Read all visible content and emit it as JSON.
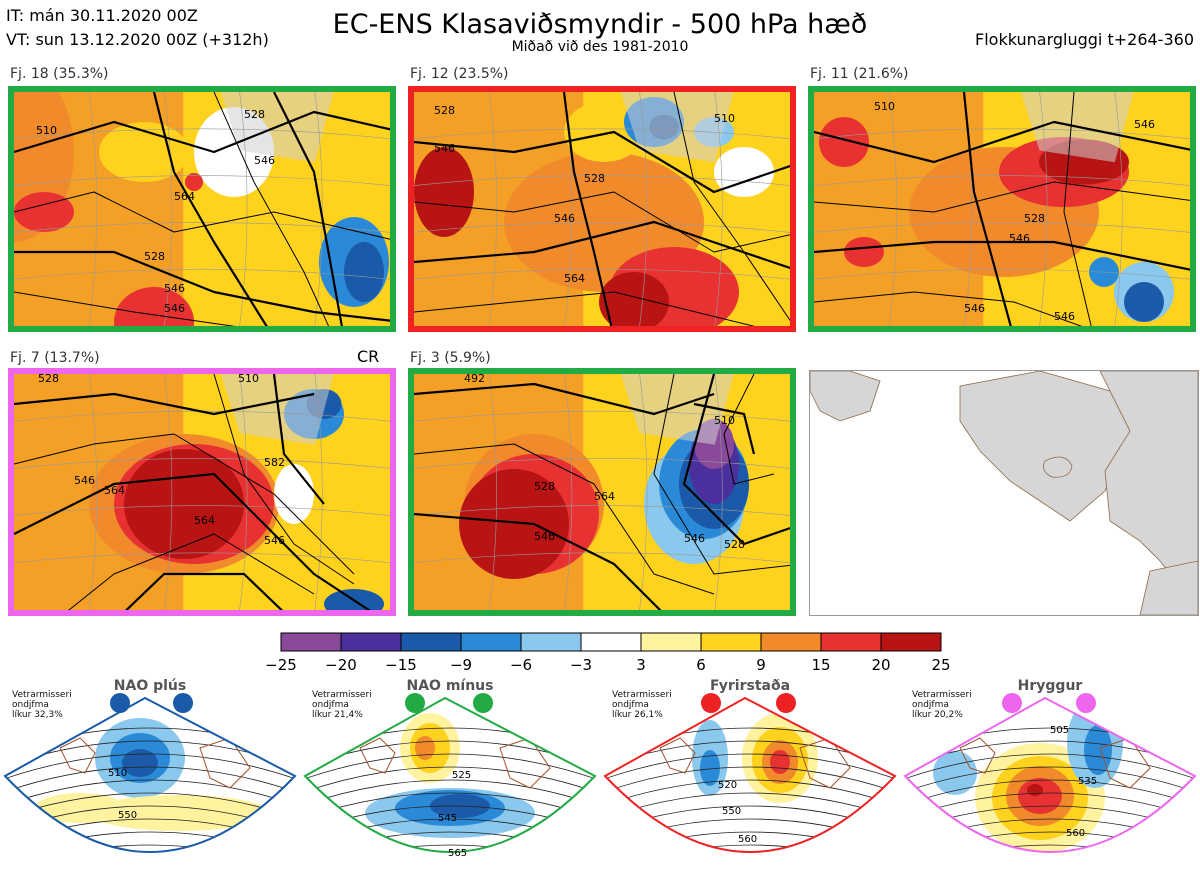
{
  "header": {
    "it_line": "IT: mán 30.11.2020 00Z",
    "vt_line": "VT: sun 13.12.2020 00Z  (+312h)",
    "title": "EC-ENS Klasaviðsmyndir - 500 hPa hæð",
    "subtitle": "Miðað við des 1981-2010",
    "window": "Flokkunargluggi t+264-360"
  },
  "panels": [
    {
      "label": "Fj. 18 (35.3%)",
      "border": "#22aa44",
      "contours": [
        "510",
        "528",
        "546",
        "564",
        "528",
        "546",
        "546"
      ]
    },
    {
      "label": "Fj. 12 (23.5%)",
      "border": "#ee2222",
      "contours": [
        "528",
        "510",
        "528",
        "546",
        "546",
        "564"
      ]
    },
    {
      "label": "Fj. 11 (21.6%)",
      "border": "#22aa44",
      "contours": [
        "510",
        "546",
        "528",
        "546",
        "546",
        "546"
      ]
    },
    {
      "label": "Fj. 7 (13.7%)",
      "border": "#ee66ee",
      "tag": "CR",
      "contours": [
        "528",
        "510",
        "546",
        "564",
        "582",
        "564",
        "546"
      ]
    },
    {
      "label": "Fj. 3 (5.9%)",
      "border": "#22aa44",
      "contours": [
        "492",
        "510",
        "528",
        "546",
        "564",
        "546",
        "528"
      ]
    }
  ],
  "colorbar": {
    "colors": [
      "#8a4a9c",
      "#4b2f9c",
      "#1a5aa8",
      "#2a8ad8",
      "#8ac8ee",
      "#ffffff",
      "#fff3a0",
      "#ffd21e",
      "#f08a2a",
      "#e83232",
      "#b81414"
    ],
    "ticks": [
      "−25",
      "−20",
      "−15",
      "−9",
      "−6",
      "−3",
      "3",
      "6",
      "9",
      "15",
      "20",
      "25"
    ]
  },
  "regimes": [
    {
      "name": "NAO plús",
      "note": "Vetrarmisseri\nondjfma\nlíkur 32,3%",
      "color": "#1a5aa8",
      "labels": [
        "510",
        "550"
      ]
    },
    {
      "name": "NAO mínus",
      "note": "Vetrarmisseri\nondjfma\nlíkur 21,4%",
      "color": "#22aa44",
      "labels": [
        "525",
        "545",
        "565"
      ]
    },
    {
      "name": "Fyrirstaða",
      "note": "Vetrarmisseri\nondjfma\nlíkur 26,1%",
      "color": "#ee2222",
      "labels": [
        "520",
        "550",
        "560"
      ]
    },
    {
      "name": "Hryggur",
      "note": "Vetrarmisseri\nondjfma\nlíkur 20,2%",
      "color": "#ee66ee",
      "labels": [
        "505",
        "535",
        "560"
      ]
    }
  ]
}
